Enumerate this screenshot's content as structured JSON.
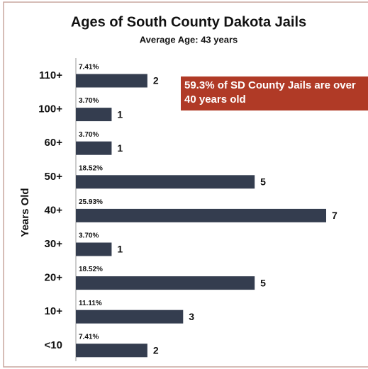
{
  "chart_data": {
    "type": "hbar",
    "title": "Ages of South County Dakota Jails",
    "subtitle": "Average Age: 43 years",
    "y_label": "Years Old",
    "categories": [
      "110+",
      "100+",
      "60+",
      "50+",
      "40+",
      "30+",
      "20+",
      "10+",
      "<10"
    ],
    "values": [
      2,
      1,
      1,
      5,
      7,
      1,
      5,
      3,
      2
    ],
    "percent_labels": [
      "7.41%",
      "3.70%",
      "3.70%",
      "18.52%",
      "25.93%",
      "3.70%",
      "18.52%",
      "11.11%",
      "7.41%"
    ],
    "color": "#343d4f",
    "xlim": [
      0,
      7
    ],
    "annotation": [
      "59.3% of SD County Jails are over",
      "40 years old"
    ],
    "annotation_color": "#b03a26"
  }
}
